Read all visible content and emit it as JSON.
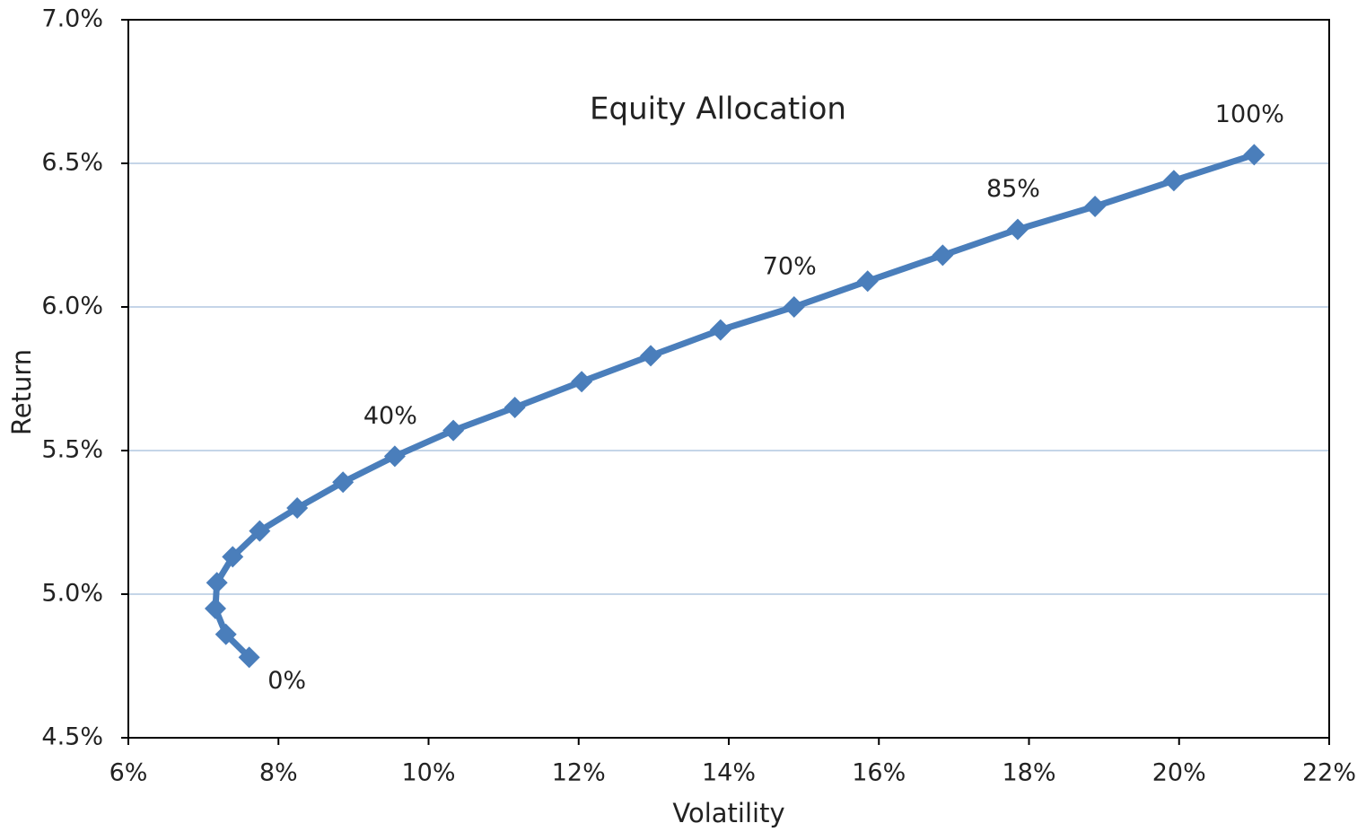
{
  "chart_data": {
    "type": "line",
    "annotation": "Equity Allocation",
    "x_label": "Volatility",
    "y_label": "Return",
    "x": [
      7.61,
      7.3,
      7.16,
      7.18,
      7.39,
      7.75,
      8.25,
      8.86,
      9.55,
      10.33,
      11.15,
      12.04,
      12.96,
      13.89,
      14.87,
      15.85,
      16.85,
      17.85,
      18.88,
      19.93,
      21.0
    ],
    "series": [
      {
        "color": "#4a7ebb",
        "values": [
          4.78,
          4.86,
          4.95,
          5.04,
          5.13,
          5.22,
          5.3,
          5.39,
          5.48,
          5.57,
          5.65,
          5.74,
          5.83,
          5.92,
          6.0,
          6.09,
          6.18,
          6.27,
          6.35,
          6.44,
          6.53
        ],
        "point_labels": [
          "0%",
          null,
          null,
          null,
          null,
          null,
          null,
          null,
          "40%",
          null,
          null,
          null,
          null,
          null,
          "70%",
          null,
          null,
          "85%",
          null,
          null,
          "100%"
        ]
      }
    ],
    "xlim": [
      6,
      22
    ],
    "xticks": [
      {
        "value": 6,
        "label": "6%"
      },
      {
        "value": 8,
        "label": "8%"
      },
      {
        "value": 10,
        "label": "10%"
      },
      {
        "value": 12,
        "label": "12%"
      },
      {
        "value": 14,
        "label": "14%"
      },
      {
        "value": 16,
        "label": "16%"
      },
      {
        "value": 18,
        "label": "18%"
      },
      {
        "value": 20,
        "label": "20%"
      },
      {
        "value": 22,
        "label": "22%"
      }
    ],
    "ylim": [
      4.5,
      7.0
    ],
    "yticks": [
      {
        "value": 4.5,
        "label": "4.5%"
      },
      {
        "value": 5.0,
        "label": "5.0%"
      },
      {
        "value": 5.5,
        "label": "5.5%"
      },
      {
        "value": 6.0,
        "label": "6.0%"
      },
      {
        "value": 6.5,
        "label": "6.5%"
      },
      {
        "value": 7.0,
        "label": "7.0%"
      }
    ],
    "grid": true
  }
}
